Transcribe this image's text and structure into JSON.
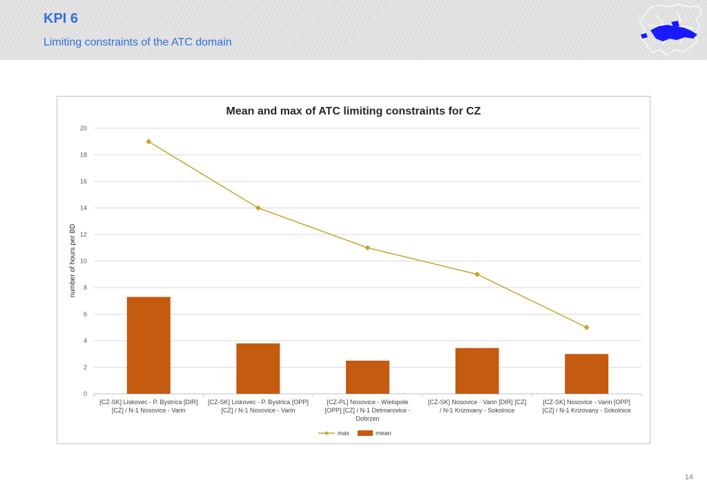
{
  "header": {
    "title": "KPI 6",
    "subtitle": "Limiting constraints of the ATC domain"
  },
  "page_number": "14",
  "colors": {
    "accent": "#2f6fe0",
    "bar": "#c55a11",
    "line": "#c9a227",
    "grid": "#d9d9d9"
  },
  "chart_data": {
    "type": "bar",
    "title": "Mean and max of ATC limiting constraints for CZ",
    "xlabel": "",
    "ylabel": "number of hours per BD",
    "ylim": [
      0,
      20
    ],
    "yticks": [
      0,
      2,
      4,
      6,
      8,
      10,
      12,
      14,
      16,
      18,
      20
    ],
    "grid": true,
    "legend_position": "bottom",
    "categories": [
      [
        "[CZ-SK] Liskovec - P. Bystrica [DIR]",
        "[CZ] / N-1 Nosovice - Varin"
      ],
      [
        "[CZ-SK] Liskovec - P. Bystrica [OPP]",
        "[CZ] / N-1 Nosovice - Varin"
      ],
      [
        "[CZ-PL] Nosovice - Wielopole",
        "[OPP] [CZ] / N-1 Detmarovice -",
        "Dobrzen"
      ],
      [
        "[CZ-SK] Nosovice - Varin [DIR] [CZ]",
        "/ N-1 Krizovany - Sokolnice"
      ],
      [
        "[CZ-SK] Nosovice - Varin [OPP]",
        "[CZ] / N-1 Krizovany - Sokolnice"
      ]
    ],
    "series": [
      {
        "name": "max",
        "kind": "line",
        "values": [
          19,
          14,
          11,
          9,
          5
        ]
      },
      {
        "name": "mean",
        "kind": "bar",
        "values": [
          7.3,
          3.8,
          2.5,
          3.45,
          3.0
        ]
      }
    ]
  }
}
